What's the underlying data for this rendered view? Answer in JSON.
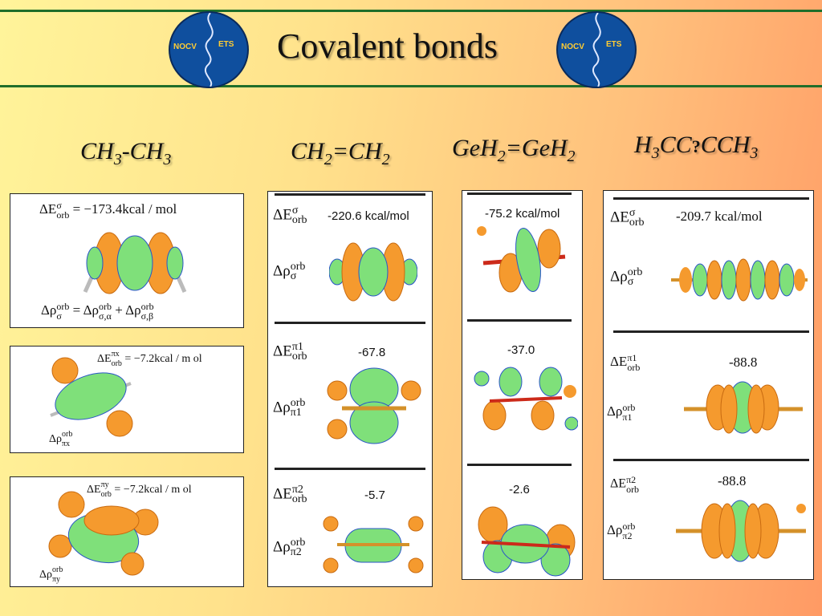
{
  "header": {
    "title": "Covalent bonds",
    "logo_left": {
      "left": "NOCV",
      "right": "ETS"
    },
    "logo_right": {
      "left": "NOCV",
      "right": "ETS"
    }
  },
  "molecules": {
    "c1": {
      "base1": "CH",
      "sub1": "3",
      "base2": "-CH",
      "sub2": "3"
    },
    "c2": {
      "base1": "CH",
      "sub1": "2",
      "base2": "=CH",
      "sub2": "2"
    },
    "c3": {
      "base1": "GeH",
      "sub1": "2",
      "base2": "=GeH",
      "sub2": "2"
    },
    "c4": {
      "base1": "H",
      "sub1": "3",
      "base2": "CC",
      "glyph": "?",
      "base3": "CCH",
      "sub3": "3"
    }
  },
  "symbols": {
    "dE": "ΔE",
    "drho": "Δρ",
    "orb": "orb",
    "sigma": "σ",
    "pi1": "π1",
    "pi2": "π2",
    "pix": "πx",
    "piy": "πy",
    "sigma_alpha": "σ,α",
    "sigma_beta": "σ,β",
    "eq": "=",
    "plus": "+"
  },
  "col1": {
    "sigma_value": "−173.4kcal / mol",
    "pix_value": "−7.2kcal / m ol",
    "piy_value": "−7.2kcal / m ol"
  },
  "col2": {
    "sigma": "-220.6 kcal/mol",
    "pi1": "-67.8",
    "pi2": "-5.7"
  },
  "col3": {
    "sigma": "-75.2 kcal/mol",
    "pi1": "-37.0",
    "pi2": "-2.6"
  },
  "col4": {
    "sigma": "-209.7 kcal/mol",
    "pi1": "-88.8",
    "pi2": "-88.8"
  },
  "colors": {
    "orange_lobe": "#f59a2e",
    "green_lobe": "#7fe07a",
    "blue_ring": "#2a55c8",
    "frame_green": "#1f6e2a",
    "globe_blue": "#0f4f9e"
  }
}
